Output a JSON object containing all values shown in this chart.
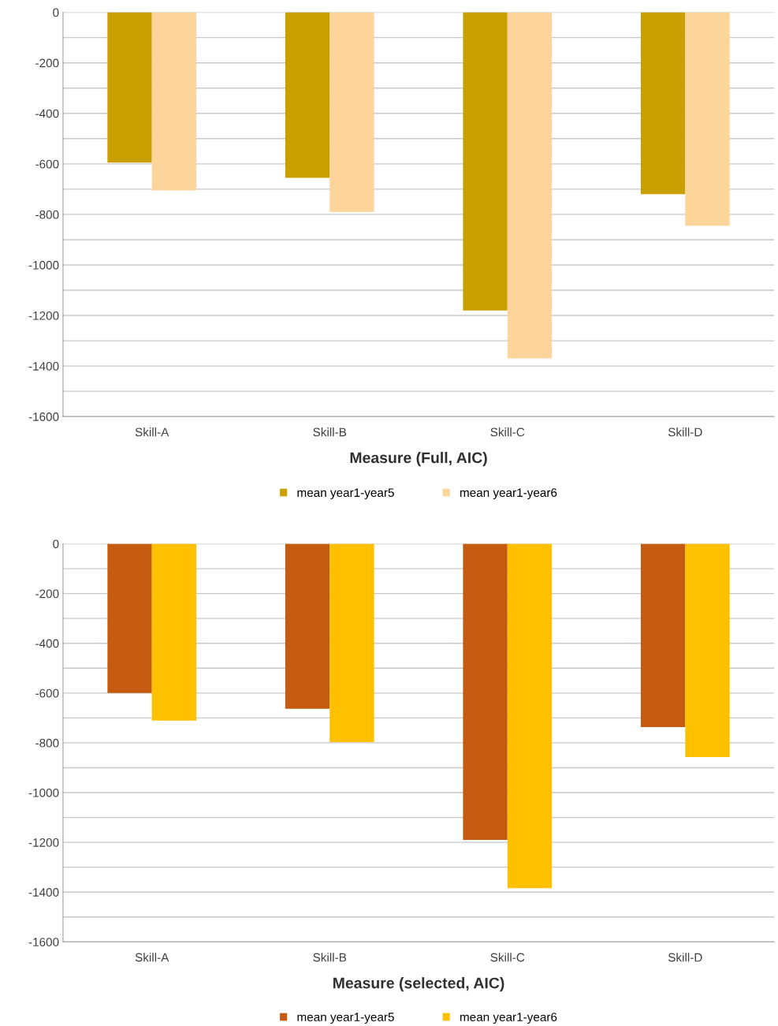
{
  "chart_data": [
    {
      "type": "bar",
      "xlabel": "Measure (Full, AIC)",
      "categories": [
        "Skill-A",
        "Skill-B",
        "Skill-C",
        "Skill-D"
      ],
      "series": [
        {
          "name": "mean year1-year5",
          "color": "#c9a000",
          "values": [
            -595,
            -655,
            -1180,
            -720
          ]
        },
        {
          "name": "mean year1-year6",
          "color": "#fdd59b",
          "values": [
            -705,
            -790,
            -1370,
            -845
          ]
        }
      ],
      "ylim": [
        -1600,
        0
      ],
      "yticks": [
        -1600,
        {
          "value": -1500,
          "label": null
        },
        -1400,
        {
          "value": -1300,
          "label": null
        },
        -1200,
        {
          "value": -1100,
          "label": null
        },
        -1000,
        {
          "value": -900,
          "label": null
        },
        -800,
        {
          "value": -700,
          "label": null
        },
        -600,
        {
          "value": -500,
          "label": null
        },
        -400,
        {
          "value": -300,
          "label": null
        },
        -200,
        {
          "value": -100,
          "label": null
        },
        0
      ],
      "grid": "y",
      "legend": "bottom"
    },
    {
      "type": "bar",
      "xlabel": "Measure (selected, AIC)",
      "categories": [
        "Skill-A",
        "Skill-B",
        "Skill-C",
        "Skill-D"
      ],
      "series": [
        {
          "name": "mean year1-year5",
          "color": "#c55a11",
          "values": [
            -600,
            -663,
            -1190,
            -737
          ]
        },
        {
          "name": "mean year1-year6",
          "color": "#ffc000",
          "values": [
            -711,
            -797,
            -1384,
            -857
          ]
        }
      ],
      "ylim": [
        -1600,
        0
      ],
      "yticks": [
        -1600,
        {
          "value": -1500,
          "label": null
        },
        -1400,
        {
          "value": -1300,
          "label": null
        },
        -1200,
        {
          "value": -1100,
          "label": null
        },
        -1000,
        {
          "value": -900,
          "label": null
        },
        -800,
        {
          "value": -700,
          "label": null
        },
        -600,
        {
          "value": -500,
          "label": null
        },
        -400,
        {
          "value": -300,
          "label": null
        },
        -200,
        {
          "value": -100,
          "label": null
        },
        0
      ],
      "grid": "y",
      "legend": "bottom"
    }
  ]
}
